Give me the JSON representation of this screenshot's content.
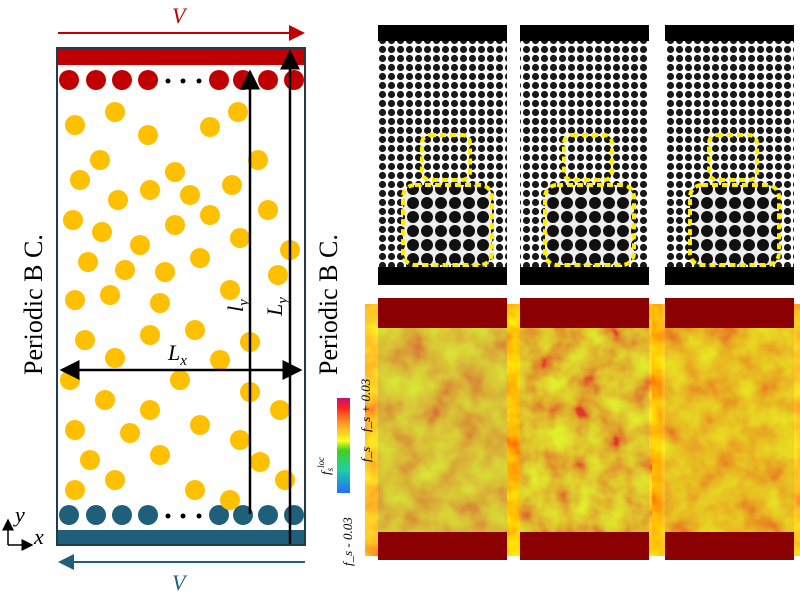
{
  "schematic": {
    "velocity_top": "V",
    "velocity_bottom": "V",
    "boundary_left": "Periodic B C.",
    "boundary_right": "Periodic B C.",
    "length_x": "L",
    "length_x_sub": "x",
    "inner_height": "l",
    "inner_height_sub": "y",
    "height": "L",
    "height_sub": "y",
    "axis_y": "y",
    "axis_x": "x"
  },
  "colorbar": {
    "label": "f",
    "label_sub": "s",
    "label_sup": "loc",
    "max": "f_s + 0.03",
    "mid": "f_s",
    "min": "f_s - 0.03"
  },
  "colors": {
    "top_wall": "#c00000",
    "bottom_wall": "#1f5f7a",
    "particle": "#ffc000",
    "outline": "#1f3b4d",
    "dashed_box": "#ffee00"
  }
}
